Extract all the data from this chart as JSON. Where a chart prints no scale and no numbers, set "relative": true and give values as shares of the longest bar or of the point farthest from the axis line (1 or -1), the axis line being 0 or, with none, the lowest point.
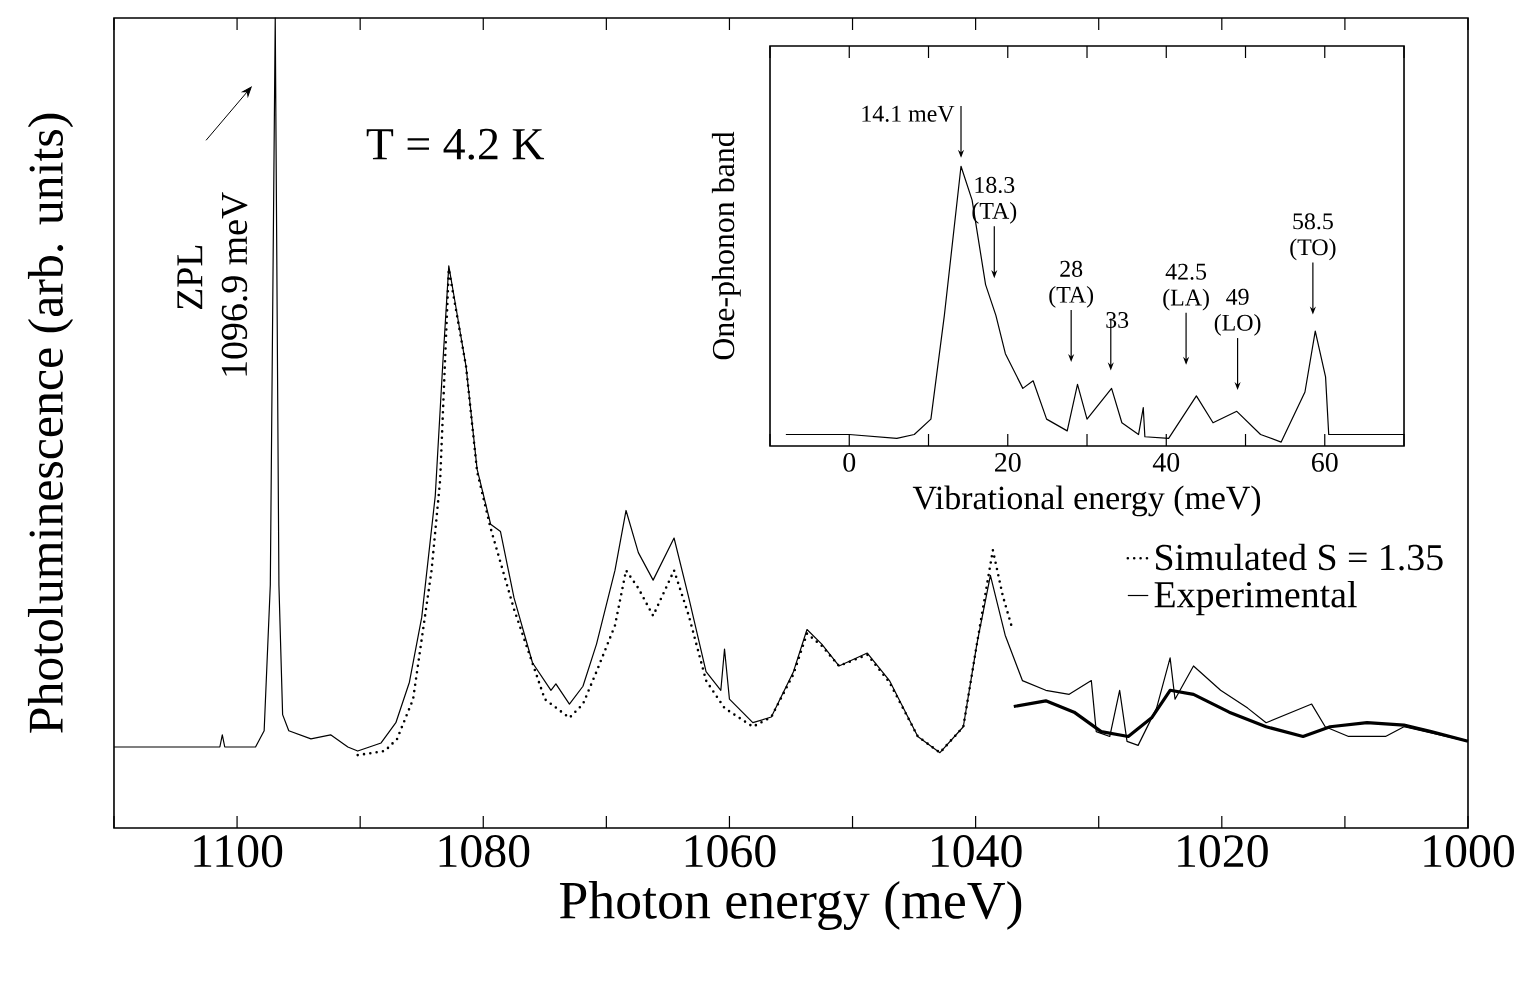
{
  "chart_data": [
    {
      "type": "line",
      "relative": true,
      "xlabel": "Photon energy (meV)",
      "ylabel": "Photoluminescence (arb. units)",
      "xlim": [
        1110,
        1000
      ],
      "xticks": [
        {
          "value": 1110,
          "label": null
        },
        1100,
        {
          "value": 1090,
          "label": null
        },
        1080,
        {
          "value": 1070,
          "label": null
        },
        1060,
        {
          "value": 1050,
          "label": null
        },
        1040,
        {
          "value": 1030,
          "label": null
        },
        1020,
        {
          "value": 1010,
          "label": null
        },
        1000
      ],
      "legend": "right",
      "marker": "none",
      "annotations": [
        "T = 4.2 K",
        "ZPL",
        "1096.9 meV"
      ],
      "series": [
        {
          "name": "Simulated S = 1.35",
          "color": "#000000",
          "line_style": "dotted",
          "x": [
            1090.2,
            1088,
            1087,
            1085.7,
            1084.2,
            1083.5,
            1082.8,
            1081.4,
            1080.5,
            1079.4,
            1077.5,
            1075,
            1073,
            1071.9,
            1070.8,
            1069.3,
            1068.4,
            1067.4,
            1066.2,
            1064.5,
            1063.3,
            1061.9,
            1060.4,
            1058.1,
            1056.6,
            1054.8,
            1053.7,
            1052.5,
            1051.1,
            1048.8,
            1047,
            1044.7,
            1042.9,
            1041,
            1039.9,
            1038.6,
            1037.8,
            1037
          ],
          "values": [
            0.09,
            0.095,
            0.11,
            0.159,
            0.318,
            0.43,
            0.69,
            0.57,
            0.44,
            0.37,
            0.27,
            0.159,
            0.136,
            0.153,
            0.193,
            0.25,
            0.318,
            0.296,
            0.262,
            0.318,
            0.262,
            0.182,
            0.148,
            0.125,
            0.137,
            0.19,
            0.24,
            0.225,
            0.2,
            0.214,
            0.18,
            0.113,
            0.093,
            0.125,
            0.227,
            0.343,
            0.287,
            0.245
          ]
        },
        {
          "name": "Experimental",
          "color": "#000000",
          "line_style": "solid",
          "x": [
            1110,
            1104,
            1101.4,
            1101.2,
            1101,
            1098.5,
            1097.8,
            1097.3,
            1096.9,
            1096.6,
            1096.3,
            1095.8,
            1094,
            1092.4,
            1091,
            1090.2,
            1088.3,
            1087.1,
            1086,
            1085,
            1083.9,
            1083.3,
            1082.8,
            1082.3,
            1081.4,
            1080.5,
            1079.4,
            1078.6,
            1077.5,
            1076,
            1074.5,
            1074.1,
            1073,
            1071.9,
            1070.8,
            1069.3,
            1068.4,
            1067.4,
            1066.2,
            1064.5,
            1063.3,
            1061.9,
            1060.7,
            1060.4,
            1060,
            1058.1,
            1056.6,
            1054.8,
            1053.7,
            1052.5,
            1051.1,
            1048.8,
            1047,
            1044.7,
            1042.9,
            1041,
            1039.9,
            1038.8,
            1037.6,
            1036.2,
            1034.3,
            1032.4,
            1030.6,
            1030.2,
            1029.1,
            1028.3,
            1027.7,
            1026.8,
            1025.3,
            1024.2,
            1023.8,
            1022.3,
            1020.1,
            1017.9,
            1016.4,
            1012.7,
            1011.6,
            1009.7,
            1006.7,
            1005.2,
            1000
          ],
          "values": [
            0.1,
            0.1,
            0.1,
            0.115,
            0.1,
            0.1,
            0.12,
            0.3,
            1.0,
            0.3,
            0.14,
            0.12,
            0.11,
            0.115,
            0.1,
            0.095,
            0.105,
            0.13,
            0.18,
            0.26,
            0.41,
            0.57,
            0.694,
            0.65,
            0.57,
            0.443,
            0.375,
            0.366,
            0.284,
            0.204,
            0.17,
            0.178,
            0.153,
            0.175,
            0.227,
            0.318,
            0.392,
            0.34,
            0.306,
            0.358,
            0.284,
            0.193,
            0.17,
            0.221,
            0.159,
            0.13,
            0.137,
            0.193,
            0.245,
            0.227,
            0.2,
            0.216,
            0.182,
            0.113,
            0.093,
            0.125,
            0.227,
            0.312,
            0.238,
            0.182,
            0.17,
            0.165,
            0.182,
            0.119,
            0.113,
            0.17,
            0.107,
            0.102,
            0.148,
            0.21,
            0.159,
            0.2,
            0.17,
            0.148,
            0.13,
            0.153,
            0.125,
            0.113,
            0.113,
            0.125,
            0.107
          ]
        },
        {
          "color": "#000000",
          "line_style": "solid",
          "x": [
            1036.9,
            1034.3,
            1032,
            1029.8,
            1027.6,
            1025.7,
            1024.2,
            1022.3,
            1019.4,
            1016.4,
            1013.4,
            1011.2,
            1008.2,
            1005.2,
            1003,
            1000
          ],
          "values": [
            0.15,
            0.157,
            0.143,
            0.119,
            0.113,
            0.136,
            0.17,
            0.165,
            0.143,
            0.125,
            0.113,
            0.125,
            0.13,
            0.127,
            0.119,
            0.107
          ]
        }
      ]
    },
    {
      "type": "line",
      "relative": true,
      "xlabel": "Vibrational energy (meV)",
      "ylabel": "One-phonon band",
      "xlim": [
        -10,
        70
      ],
      "xticks": [
        {
          "value": -10,
          "label": null
        },
        0,
        {
          "value": 10,
          "label": null
        },
        20,
        {
          "value": 30,
          "label": null
        },
        40,
        {
          "value": 50,
          "label": null
        },
        60,
        {
          "value": 70,
          "label": null
        }
      ],
      "tick_labels": "x",
      "marker": "none",
      "annotations": [
        {
          "text": "14.1 meV",
          "x": 14.1,
          "y": 1.03
        },
        {
          "text": "18.3 (TA)",
          "x": 18.3,
          "y": 0.6
        },
        {
          "text": "28 (TA)",
          "x": 28,
          "y": 0.3
        },
        {
          "text": "33",
          "x": 33,
          "y": 0.27
        },
        {
          "text": "42.5 (LA)",
          "x": 42.5,
          "y": 0.29
        },
        {
          "text": "49 (LO)",
          "x": 49,
          "y": 0.2
        },
        {
          "text": "58.5 (TO)",
          "x": 58.5,
          "y": 0.47
        }
      ],
      "series": [
        {
          "color": "#000000",
          "line_style": "solid",
          "x": [
            -8,
            0,
            6,
            8.2,
            10.3,
            12,
            14.1,
            15.5,
            17.2,
            18.5,
            19.7,
            21.9,
            23.2,
            24.9,
            27.5,
            28.8,
            30,
            33.1,
            34.4,
            36.5,
            37.1,
            37.3,
            40.3,
            43.8,
            45.9,
            48.9,
            51.9,
            54.5,
            57.5,
            58.8,
            60.1,
            60.5,
            70
          ],
          "values": [
            0.041,
            0.041,
            0.027,
            0.041,
            0.096,
            0.467,
            1,
            0.879,
            0.577,
            0.467,
            0.33,
            0.206,
            0.233,
            0.096,
            0.054,
            0.22,
            0.096,
            0.206,
            0.083,
            0.041,
            0.137,
            0.033,
            0.027,
            0.179,
            0.083,
            0.124,
            0.041,
            0.014,
            0.193,
            0.411,
            0.247,
            0.041,
            0.041
          ]
        }
      ]
    }
  ]
}
